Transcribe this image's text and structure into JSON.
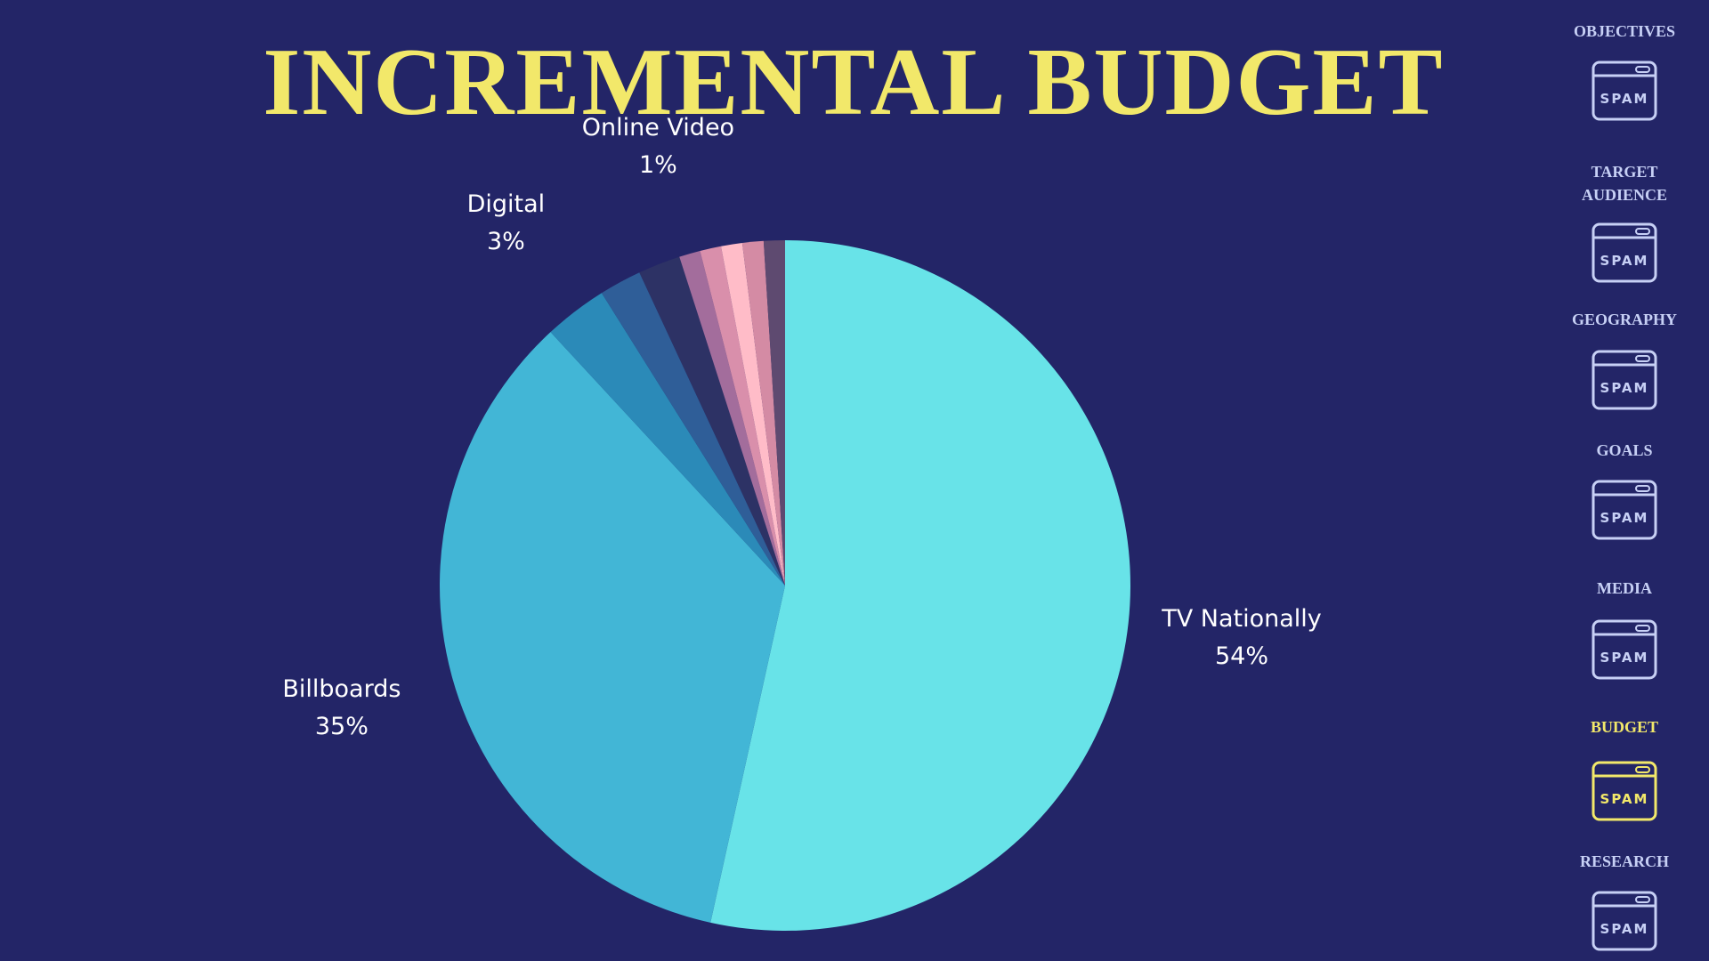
{
  "chart_data": {
    "type": "pie",
    "title": "INCREMENTAL BUDGET",
    "categories": [
      "TV Nationally",
      "Billboards",
      "Digital",
      null,
      null,
      "Online Video",
      null,
      null,
      null,
      null
    ],
    "values": [
      54,
      35,
      3,
      2,
      2,
      1,
      1,
      1,
      1,
      1
    ],
    "value_labels": [
      "54%",
      "35%",
      "3%",
      null,
      null,
      "1%",
      null,
      null,
      null,
      null
    ],
    "colors": [
      "#68e3e8",
      "#42b6d6",
      "#2b8ab8",
      "#2f5e98",
      "#2d3265",
      "#a36d9c",
      "#d98fab",
      "#ffbcc8",
      "#d48ba4",
      "#5e4a70"
    ]
  },
  "nav": {
    "active": 5,
    "items": [
      {
        "label": "OBJECTIVES",
        "icon_text": "SPAM"
      },
      {
        "label": "TARGET AUDIENCE",
        "icon_text": "SPAM"
      },
      {
        "label": "GEOGRAPHY",
        "icon_text": "SPAM"
      },
      {
        "label": "GOALS",
        "icon_text": "SPAM"
      },
      {
        "label": "MEDIA",
        "icon_text": "SPAM"
      },
      {
        "label": "BUDGET",
        "icon_text": "SPAM"
      },
      {
        "label": "RESEARCH",
        "icon_text": "SPAM"
      }
    ]
  }
}
